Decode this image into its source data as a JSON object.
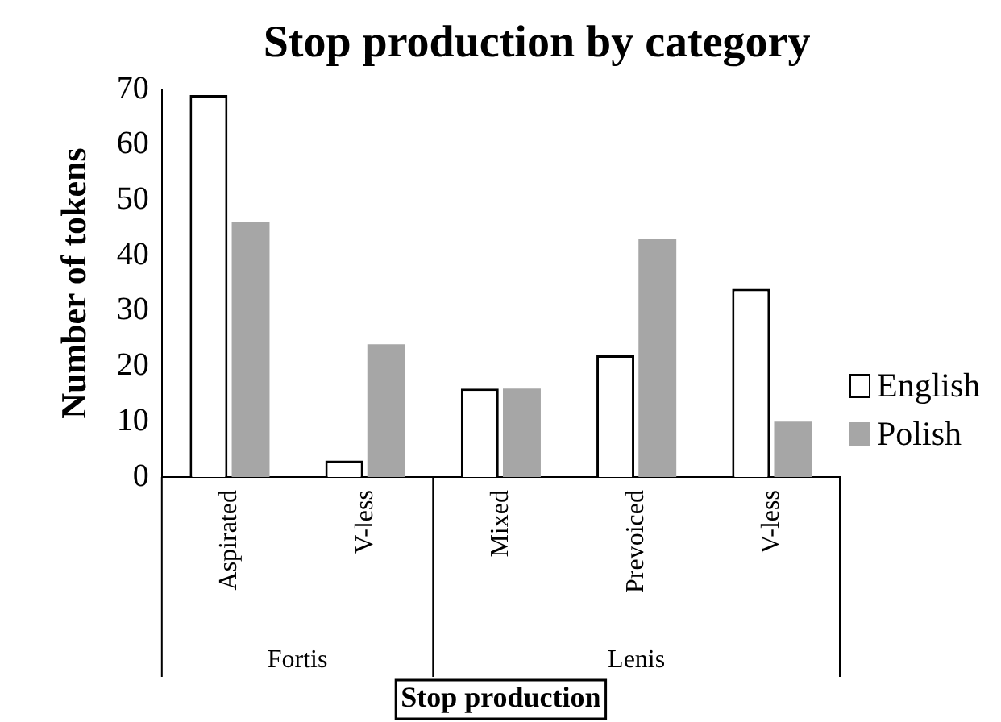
{
  "chart_data": {
    "type": "bar",
    "title": "Stop production by category",
    "xlabel": "Stop production",
    "ylabel": "Number of tokens",
    "categories": [
      "Aspirated",
      "V-less",
      "Mixed",
      "Prevoiced",
      "V-less"
    ],
    "series": [
      {
        "name": "English",
        "color": "#ffffff",
        "values": [
          69,
          3,
          16,
          22,
          34
        ]
      },
      {
        "name": "Polish",
        "color": "#a6a6a6",
        "values": [
          46,
          24,
          16,
          43,
          10
        ]
      }
    ],
    "annotations": [
      "Fortis",
      "Lenis"
    ],
    "ylim": [
      0,
      70
    ],
    "yticks": [
      0,
      10,
      20,
      30,
      40,
      50,
      60,
      70
    ],
    "grid": false,
    "legend": "right"
  }
}
